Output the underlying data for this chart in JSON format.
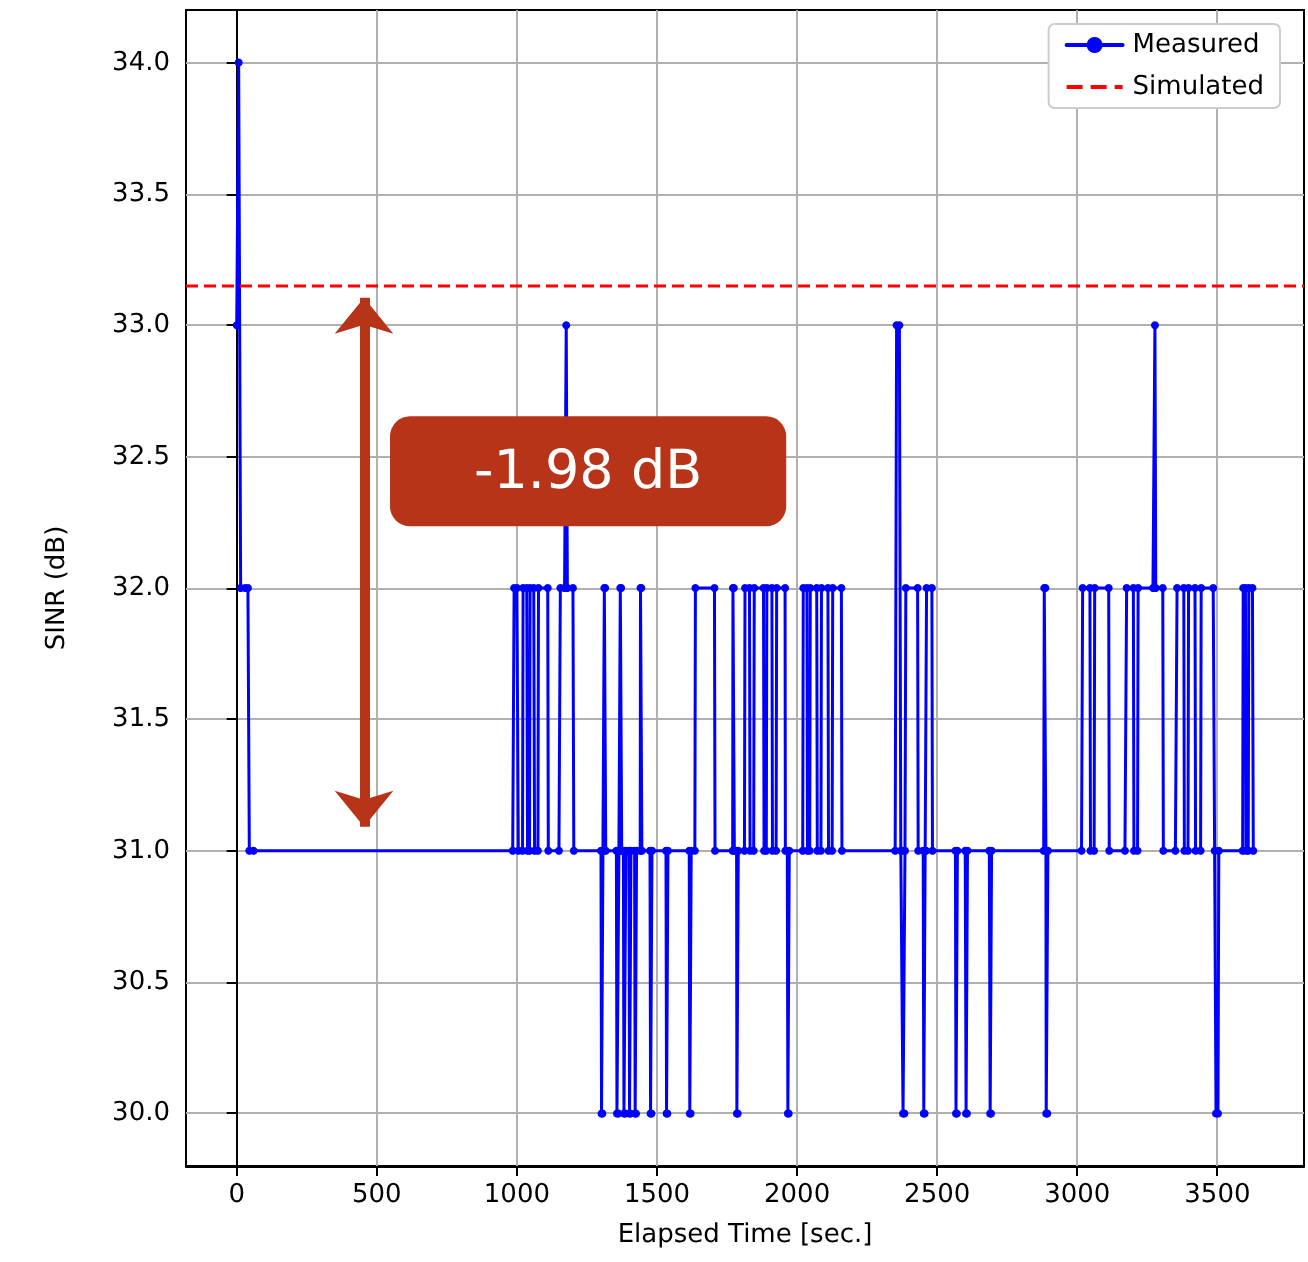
{
  "chart_data": {
    "type": "line",
    "xlabel": "Elapsed Time [sec.]",
    "ylabel": "SINR (dB)",
    "xlim": [
      -181,
      3809
    ],
    "ylim": [
      29.8,
      34.2
    ],
    "xticks": [
      0,
      500,
      1000,
      1500,
      2000,
      2500,
      3000,
      3500
    ],
    "yticks": [
      {
        "value": 30,
        "label": "30.0"
      },
      {
        "value": 30.5,
        "label": "30.5"
      },
      {
        "value": 31,
        "label": "31.0"
      },
      {
        "value": 31.5,
        "label": "31.5"
      },
      {
        "value": 32,
        "label": "32.0"
      },
      {
        "value": 32.5,
        "label": "32.5"
      },
      {
        "value": 33,
        "label": "33.0"
      },
      {
        "value": 33.5,
        "label": "33.5"
      },
      {
        "value": 34,
        "label": "34.0"
      }
    ],
    "grid": true,
    "legend": "top right",
    "marker": "circle",
    "line_style": "solid",
    "series": [
      {
        "name": "Measured",
        "color": "#0000ff",
        "x": [
          0,
          7,
          14,
          30,
          40,
          45,
          60,
          985,
          990,
          1000,
          1005,
          1020,
          1022,
          1035,
          1038,
          1045,
          1047,
          1060,
          1063,
          1075,
          1077,
          1110,
          1112,
          1150,
          1155,
          1170,
          1176,
          1180,
          1200,
          1203,
          1300,
          1302,
          1305,
          1307,
          1310,
          1312,
          1315,
          1317,
          1355,
          1357,
          1362,
          1364,
          1368,
          1369,
          1372,
          1374,
          1380,
          1382,
          1387,
          1389,
          1400,
          1402,
          1405,
          1407,
          1420,
          1422,
          1425,
          1427,
          1440,
          1441,
          1444,
          1446,
          1475,
          1477,
          1480,
          1482,
          1532,
          1534,
          1537,
          1539,
          1615,
          1617,
          1620,
          1622,
          1635,
          1637,
          1705,
          1707,
          1770,
          1771,
          1774,
          1776,
          1784,
          1785,
          1788,
          1790,
          1812,
          1814,
          1830,
          1832,
          1845,
          1847,
          1880,
          1882,
          1890,
          1892,
          1910,
          1912,
          1925,
          1927,
          1957,
          1958,
          1965,
          1967,
          1970,
          1972,
          2020,
          2022,
          2035,
          2037,
          2045,
          2047,
          2070,
          2072,
          2085,
          2087,
          2110,
          2112,
          2125,
          2127,
          2158,
          2160,
          2350,
          2355,
          2365,
          2370,
          2375,
          2378,
          2383,
          2385,
          2388,
          2430,
          2432,
          2450,
          2452,
          2455,
          2457,
          2460,
          2462,
          2481,
          2483,
          2565,
          2567,
          2570,
          2572,
          2600,
          2603,
          2606,
          2608,
          2686,
          2689,
          2692,
          2694,
          2880,
          2882,
          2886,
          2888,
          2889,
          2893,
          2895,
          3015,
          3019,
          3045,
          3047,
          3060,
          3062,
          3112,
          3114,
          3170,
          3176,
          3200,
          3202,
          3215,
          3217,
          3270,
          3277,
          3280,
          3305,
          3307,
          3350,
          3356,
          3380,
          3382,
          3395,
          3397,
          3420,
          3422,
          3440,
          3442,
          3485,
          3490,
          3495,
          3502,
          3505,
          3590,
          3592,
          3600,
          3602,
          3610,
          3612,
          3625,
          3628
        ],
        "values": [
          33,
          34,
          32,
          32,
          32,
          31,
          31,
          31,
          32,
          32,
          31,
          31,
          32,
          32,
          31,
          31,
          32,
          32,
          31,
          31,
          32,
          32,
          31,
          31,
          32,
          32,
          33,
          32,
          32,
          31,
          31,
          30,
          30,
          31,
          31,
          32,
          32,
          31,
          31,
          30,
          30,
          31,
          31,
          32,
          32,
          31,
          31,
          30,
          30,
          31,
          31,
          30,
          30,
          31,
          31,
          30,
          30,
          31,
          31,
          32,
          32,
          31,
          31,
          30,
          30,
          31,
          31,
          30,
          30,
          31,
          31,
          30,
          30,
          31,
          31,
          32,
          32,
          31,
          31,
          32,
          32,
          31,
          31,
          30,
          30,
          31,
          31,
          32,
          32,
          31,
          31,
          32,
          32,
          31,
          31,
          32,
          32,
          31,
          31,
          32,
          32,
          31,
          31,
          30,
          30,
          31,
          31,
          32,
          32,
          31,
          31,
          32,
          32,
          31,
          31,
          32,
          32,
          31,
          31,
          32,
          32,
          31,
          31,
          33,
          33,
          31,
          31,
          30,
          30,
          31,
          32,
          32,
          31,
          31,
          30,
          30,
          31,
          31,
          32,
          32,
          31,
          31,
          30,
          30,
          31,
          31,
          30,
          30,
          31,
          31,
          30,
          30,
          31,
          31,
          32,
          32,
          31,
          30,
          30,
          31,
          31,
          32,
          32,
          31,
          31,
          32,
          32,
          31,
          31,
          32,
          32,
          31,
          31,
          32,
          32,
          33,
          32,
          32,
          31,
          31,
          32,
          32,
          31,
          31,
          32,
          32,
          31,
          31,
          32,
          32,
          31,
          30,
          30,
          31,
          31,
          32,
          32,
          31,
          31,
          32,
          32,
          31
        ]
      }
    ],
    "ref_lines": [
      {
        "axis": "y",
        "value": 33.15,
        "label": "Simulated",
        "color": "#ff0000",
        "line_style": "dashed"
      }
    ],
    "annotations": [
      "-1.98 dB"
    ]
  }
}
